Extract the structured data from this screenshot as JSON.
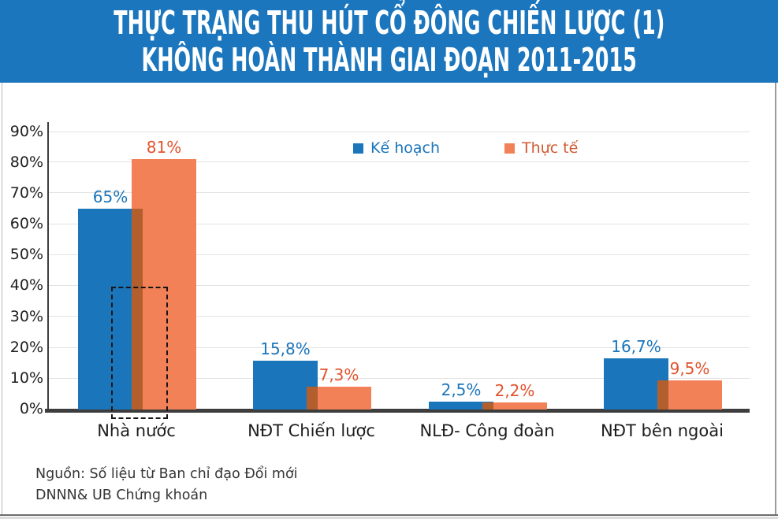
{
  "header": {
    "line1": "THỰC TRẠNG THU HÚT CỔ ĐÔNG CHIẾN LƯỢC (1)",
    "line2": "KHÔNG HOÀN THÀNH GIAI ĐOẠN 2011-2015",
    "background": "#1b76bd",
    "text_color": "#ffffff"
  },
  "legend": {
    "items": [
      {
        "label": "Kế hoạch",
        "color": "#1b75bb",
        "text_color": "#1b75bb"
      },
      {
        "label": "Thực tế",
        "color": "#f28157",
        "text_color": "#d05a31"
      }
    ]
  },
  "chart_data": {
    "type": "bar",
    "title": "THỰC TRẠNG THU HÚT CỔ ĐÔNG CHIẾN LƯỢC (1) KHÔNG HOÀN THÀNH GIAI ĐOẠN 2011-2015",
    "categories": [
      "Nhà nước",
      "NĐT Chiến lược",
      "NLĐ- Công đoàn",
      "NĐT bên ngoài"
    ],
    "series": [
      {
        "name": "Kế hoạch",
        "color": "#1b75bb",
        "label_color": "#1b75bb",
        "values": [
          65,
          15.8,
          2.5,
          16.7
        ],
        "value_labels": [
          "65%",
          "15,8%",
          "2,5%",
          "16,7%"
        ]
      },
      {
        "name": "Thực tế",
        "color": "#f28157",
        "label_color": "#e2532c",
        "values": [
          81,
          7.3,
          2.2,
          9.5
        ],
        "value_labels": [
          "81%",
          "7,3%",
          "2,2%",
          "9,5%"
        ]
      }
    ],
    "overlap_color": "#b35e2d",
    "ylim": [
      0,
      90
    ],
    "yticks": [
      "0%",
      "10%",
      "20%",
      "30%",
      "40%",
      "50%",
      "60%",
      "70%",
      "80%",
      "90%"
    ],
    "grid": true,
    "legend_position": "top-center",
    "annotation": {
      "type": "dashed-rectangle",
      "target": "Nhà nước bars below 40%"
    }
  },
  "source": {
    "line1": "Nguồn: Số liệu từ Ban chỉ đạo Đổi mới",
    "line2": "DNNN& UB Chứng khoán"
  }
}
